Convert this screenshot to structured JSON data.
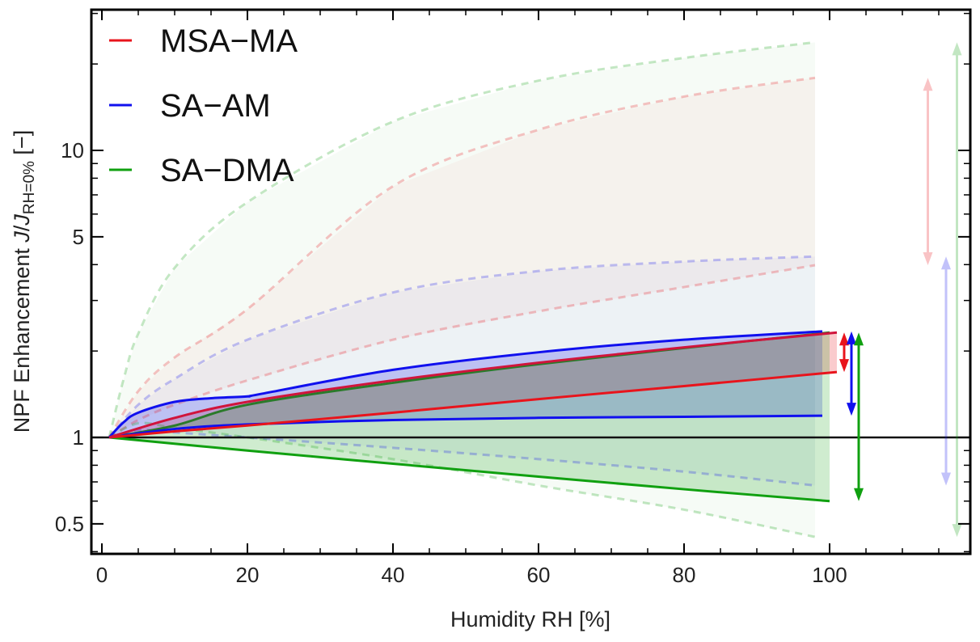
{
  "chart_data": {
    "type": "line",
    "title": "",
    "xlabel": "Humidity RH [%]",
    "ylabel": {
      "main": "NPF Enhancement ",
      "j1": "J",
      "slash": "/",
      "j2": "J",
      "sub": "RH=0%",
      "unit": " [−]"
    },
    "xlim": [
      -1.5,
      119
    ],
    "ylim": [
      0.39,
      31
    ],
    "yscale": "log",
    "x_ticks": [
      0,
      20,
      40,
      60,
      80,
      100
    ],
    "x_tick_labels": [
      "0",
      "20",
      "40",
      "60",
      "80",
      "100"
    ],
    "y_ticks": [
      0.5,
      1,
      5,
      10
    ],
    "y_tick_labels": [
      "0.5",
      "1",
      "5",
      "10"
    ],
    "grid": false,
    "legend_placement": "top-left",
    "legend": [
      {
        "name": "MSA−MA",
        "color": "#e8141c"
      },
      {
        "name": "SA−AM",
        "color": "#1010ee"
      },
      {
        "name": "SA−DMA",
        "color": "#10a010"
      }
    ],
    "reference_line": 1,
    "series": [
      {
        "name": "MSA−MA",
        "color": "#e8141c",
        "upper": {
          "x": [
            1,
            10,
            20,
            40,
            60,
            80,
            101
          ],
          "y": [
            1,
            1.17,
            1.33,
            1.58,
            1.82,
            2.06,
            2.32
          ]
        },
        "lower": {
          "x": [
            1,
            10,
            20,
            40,
            60,
            80,
            101
          ],
          "y": [
            1,
            1.05,
            1.1,
            1.22,
            1.36,
            1.51,
            1.69
          ]
        },
        "dashed_upper": {
          "x": [
            1,
            5,
            10,
            20,
            40,
            60,
            80,
            98
          ],
          "y": [
            1,
            1.45,
            1.9,
            2.8,
            7.5,
            11.8,
            15.4,
            17.9
          ]
        },
        "dashed_lower": {
          "x": [
            1,
            5,
            10,
            20,
            40,
            60,
            80,
            98
          ],
          "y": [
            1,
            1.15,
            1.3,
            1.58,
            2.19,
            2.75,
            3.34,
            3.98
          ]
        }
      },
      {
        "name": "SA−AM",
        "color": "#1010ee",
        "upper": {
          "x": [
            1,
            3,
            5,
            10,
            15,
            20,
            22,
            40,
            60,
            80,
            99
          ],
          "y": [
            1,
            1.13,
            1.22,
            1.33,
            1.37,
            1.39,
            1.42,
            1.72,
            1.98,
            2.19,
            2.34
          ]
        },
        "lower": {
          "x": [
            1,
            10,
            20,
            40,
            60,
            80,
            99
          ],
          "y": [
            1,
            1.07,
            1.11,
            1.15,
            1.17,
            1.18,
            1.19
          ]
        },
        "dashed_upper": {
          "x": [
            1,
            5,
            10,
            20,
            40,
            60,
            80,
            98
          ],
          "y": [
            1,
            1.3,
            1.6,
            2.19,
            3.2,
            3.8,
            4.1,
            4.27
          ]
        },
        "dashed_lower": {
          "x": [
            1,
            5,
            10,
            20,
            40,
            60,
            80,
            98
          ],
          "y": [
            1,
            1.06,
            1.04,
            1.0,
            0.92,
            0.84,
            0.76,
            0.68
          ]
        }
      },
      {
        "name": "SA−DMA",
        "color": "#10a010",
        "upper": {
          "x": [
            1,
            10,
            20,
            40,
            60,
            80,
            100
          ],
          "y": [
            1,
            1.1,
            1.3,
            1.55,
            1.8,
            2.05,
            2.32
          ]
        },
        "lower": {
          "x": [
            1,
            20,
            40,
            60,
            80,
            100
          ],
          "y": [
            1,
            0.9,
            0.81,
            0.73,
            0.66,
            0.6
          ]
        },
        "dashed_upper": {
          "x": [
            1,
            3,
            5,
            10,
            20,
            40,
            60,
            80,
            98
          ],
          "y": [
            1,
            1.6,
            2.3,
            3.9,
            6.6,
            12.6,
            17.5,
            21,
            23.8
          ]
        },
        "dashed_lower": {
          "x": [
            1,
            5,
            10,
            20,
            40,
            60,
            80,
            98
          ],
          "y": [
            1,
            1.12,
            1.08,
            1.0,
            0.84,
            0.68,
            0.56,
            0.45
          ]
        }
      }
    ],
    "range_arrows": [
      {
        "series": "MSA−MA",
        "style": "solid",
        "x": 102,
        "from": 2.32,
        "to": 1.69
      },
      {
        "series": "SA−AM",
        "style": "solid",
        "x": 103,
        "from": 2.34,
        "to": 1.19
      },
      {
        "series": "SA−DMA",
        "style": "solid",
        "x": 104,
        "from": 2.32,
        "to": 0.6
      },
      {
        "series": "MSA−MA",
        "style": "faint",
        "x": 113.5,
        "from": 17.9,
        "to": 3.98
      },
      {
        "series": "SA−AM",
        "style": "faint",
        "x": 116,
        "from": 4.27,
        "to": 0.68
      },
      {
        "series": "SA−DMA",
        "style": "faint",
        "x": 117.5,
        "from": 23.8,
        "to": 0.45
      }
    ]
  }
}
